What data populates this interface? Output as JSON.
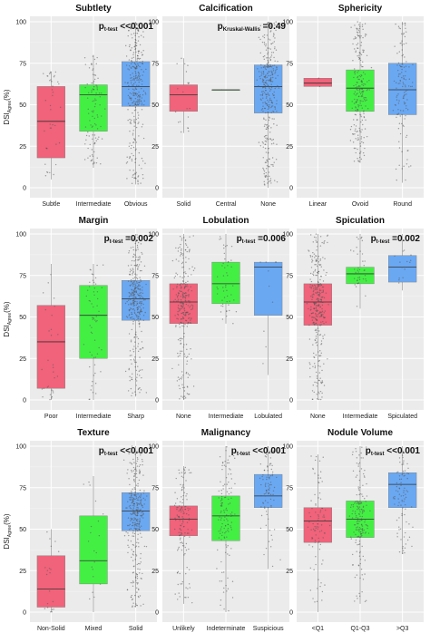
{
  "figure": {
    "ylabel_main": "DSI",
    "ylabel_sub": "Agree",
    "ylabel_tail": "(%)",
    "yticks": [
      "0",
      "25",
      "50",
      "75",
      "100"
    ]
  },
  "chart_data": [
    {
      "type": "box",
      "title": "Subtlety",
      "p_sub": "t-test",
      "p_rel": "<<",
      "p_val": "0.001",
      "ylim": [
        0,
        100
      ],
      "grid": true,
      "categories": [
        "Subtle",
        "Intermediate",
        "Obvious"
      ],
      "colors": [
        "#f0637a",
        "#44ef44",
        "#6aa8f2"
      ],
      "boxes": [
        {
          "lower_whisker": 5,
          "q1": 18,
          "median": 40,
          "q3": 61,
          "upper_whisker": 70,
          "n_points": 40
        },
        {
          "lower_whisker": 12,
          "q1": 34,
          "median": 56,
          "q3": 62,
          "upper_whisker": 80,
          "n_points": 100
        },
        {
          "lower_whisker": 2,
          "q1": 49,
          "median": 61,
          "q3": 76,
          "upper_whisker": 100,
          "n_points": 320
        }
      ]
    },
    {
      "type": "box",
      "title": "Calcification",
      "p_sub": "Kruskal-Wallis",
      "p_rel": "=",
      "p_val": "0.49",
      "ylim": [
        0,
        100
      ],
      "grid": true,
      "categories": [
        "Solid",
        "Central",
        "None"
      ],
      "colors": [
        "#f0637a",
        "#44ef44",
        "#6aa8f2"
      ],
      "boxes": [
        {
          "lower_whisker": 33,
          "q1": 46,
          "median": 56,
          "q3": 62,
          "upper_whisker": 78,
          "n_points": 20
        },
        {
          "lower_whisker": 59,
          "q1": 59,
          "median": 59,
          "q3": 59,
          "upper_whisker": 59,
          "n_points": 1
        },
        {
          "lower_whisker": 0,
          "q1": 45,
          "median": 61,
          "q3": 74,
          "upper_whisker": 100,
          "n_points": 330
        }
      ]
    },
    {
      "type": "box",
      "title": "Sphericity",
      "p_sub": "",
      "p_rel": "",
      "p_val": "",
      "ylim": [
        0,
        100
      ],
      "grid": true,
      "categories": [
        "Linear",
        "Ovoid",
        "Round"
      ],
      "colors": [
        "#f0637a",
        "#44ef44",
        "#6aa8f2"
      ],
      "boxes": [
        {
          "lower_whisker": 61,
          "q1": 61,
          "median": 63,
          "q3": 66,
          "upper_whisker": 66,
          "n_points": 3
        },
        {
          "lower_whisker": 15,
          "q1": 46,
          "median": 60,
          "q3": 71,
          "upper_whisker": 100,
          "n_points": 230
        },
        {
          "lower_whisker": 3,
          "q1": 44,
          "median": 59,
          "q3": 75,
          "upper_whisker": 100,
          "n_points": 130
        }
      ]
    },
    {
      "type": "box",
      "title": "Margin",
      "p_sub": "t-test",
      "p_rel": "=",
      "p_val": "0.002",
      "ylim": [
        0,
        100
      ],
      "grid": true,
      "categories": [
        "Poor",
        "Intermediate",
        "Sharp"
      ],
      "colors": [
        "#f0637a",
        "#44ef44",
        "#6aa8f2"
      ],
      "boxes": [
        {
          "lower_whisker": 0,
          "q1": 7,
          "median": 35,
          "q3": 57,
          "upper_whisker": 82,
          "n_points": 30
        },
        {
          "lower_whisker": 0,
          "q1": 25,
          "median": 51,
          "q3": 69,
          "upper_whisker": 82,
          "n_points": 60
        },
        {
          "lower_whisker": 2,
          "q1": 48,
          "median": 61,
          "q3": 72,
          "upper_whisker": 100,
          "n_points": 330
        }
      ]
    },
    {
      "type": "box",
      "title": "Lobulation",
      "p_sub": "t-test",
      "p_rel": "=",
      "p_val": "0.006",
      "ylim": [
        0,
        100
      ],
      "grid": true,
      "categories": [
        "None",
        "Intermediate",
        "Lobulated"
      ],
      "colors": [
        "#f0637a",
        "#44ef44",
        "#6aa8f2"
      ],
      "boxes": [
        {
          "lower_whisker": 0,
          "q1": 46,
          "median": 59,
          "q3": 70,
          "upper_whisker": 100,
          "n_points": 280
        },
        {
          "lower_whisker": 46,
          "q1": 58,
          "median": 70,
          "q3": 83,
          "upper_whisker": 100,
          "n_points": 50
        },
        {
          "lower_whisker": 15,
          "q1": 51,
          "median": 80,
          "q3": 83,
          "upper_whisker": 83,
          "n_points": 10
        }
      ]
    },
    {
      "type": "box",
      "title": "Spiculation",
      "p_sub": "t-test",
      "p_rel": "=",
      "p_val": "0.002",
      "ylim": [
        0,
        100
      ],
      "grid": true,
      "categories": [
        "None",
        "Intermediate",
        "Spiculated"
      ],
      "colors": [
        "#f0637a",
        "#44ef44",
        "#6aa8f2"
      ],
      "boxes": [
        {
          "lower_whisker": 0,
          "q1": 45,
          "median": 59,
          "q3": 70,
          "upper_whisker": 100,
          "n_points": 330
        },
        {
          "lower_whisker": 55,
          "q1": 70,
          "median": 76,
          "q3": 80,
          "upper_whisker": 100,
          "n_points": 40
        },
        {
          "lower_whisker": 66,
          "q1": 71,
          "median": 80,
          "q3": 87,
          "upper_whisker": 100,
          "n_points": 15
        }
      ]
    },
    {
      "type": "box",
      "title": "Texture",
      "p_sub": "t-test",
      "p_rel": "<<",
      "p_val": "0.001",
      "ylim": [
        0,
        100
      ],
      "grid": true,
      "categories": [
        "Non-Solid",
        "Mixed",
        "Solid"
      ],
      "colors": [
        "#f0637a",
        "#44ef44",
        "#6aa8f2"
      ],
      "boxes": [
        {
          "lower_whisker": 0,
          "q1": 3,
          "median": 14,
          "q3": 34,
          "upper_whisker": 50,
          "n_points": 20
        },
        {
          "lower_whisker": 0,
          "q1": 17,
          "median": 31,
          "q3": 58,
          "upper_whisker": 82,
          "n_points": 20
        },
        {
          "lower_whisker": 3,
          "q1": 49,
          "median": 61,
          "q3": 72,
          "upper_whisker": 100,
          "n_points": 330
        }
      ]
    },
    {
      "type": "box",
      "title": "Malignancy",
      "p_sub": "t-test",
      "p_rel": "<<",
      "p_val": "0.001",
      "ylim": [
        0,
        100
      ],
      "grid": true,
      "categories": [
        "Unlikely",
        "Indeterminate",
        "Suspicious"
      ],
      "colors": [
        "#f0637a",
        "#44ef44",
        "#6aa8f2"
      ],
      "boxes": [
        {
          "lower_whisker": 5,
          "q1": 46,
          "median": 56,
          "q3": 64,
          "upper_whisker": 88,
          "n_points": 140
        },
        {
          "lower_whisker": 0,
          "q1": 43,
          "median": 58,
          "q3": 70,
          "upper_whisker": 100,
          "n_points": 130
        },
        {
          "lower_whisker": 26,
          "q1": 63,
          "median": 70,
          "q3": 83,
          "upper_whisker": 100,
          "n_points": 90
        }
      ]
    },
    {
      "type": "box",
      "title": "Nodule Volume",
      "p_sub": "t-test",
      "p_rel": "<<",
      "p_val": "0.001",
      "ylim": [
        0,
        100
      ],
      "grid": true,
      "categories": [
        "<Q1",
        "Q1-Q3",
        ">Q3"
      ],
      "colors": [
        "#f0637a",
        "#44ef44",
        "#6aa8f2"
      ],
      "boxes": [
        {
          "lower_whisker": 0,
          "q1": 42,
          "median": 55,
          "q3": 63,
          "upper_whisker": 95,
          "n_points": 90
        },
        {
          "lower_whisker": 5,
          "q1": 45,
          "median": 56,
          "q3": 67,
          "upper_whisker": 100,
          "n_points": 180
        },
        {
          "lower_whisker": 35,
          "q1": 63,
          "median": 77,
          "q3": 84,
          "upper_whisker": 100,
          "n_points": 90
        }
      ]
    }
  ]
}
